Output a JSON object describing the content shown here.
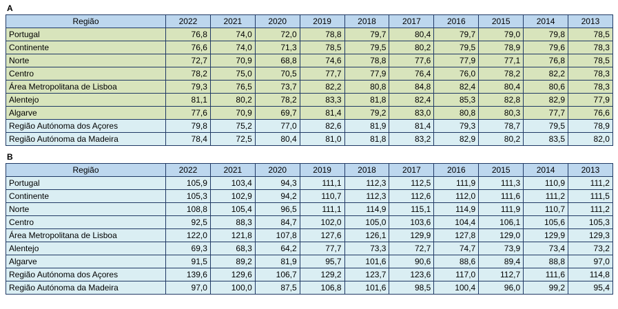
{
  "colors": {
    "header_fill": "#BDD7EE",
    "green_fill": "#D8E4BC",
    "blue_fill": "#DAEEF3",
    "border": "#1F3864",
    "text": "#000000"
  },
  "tables": [
    {
      "label": "A",
      "region_header": "Região",
      "years": [
        "2022",
        "2021",
        "2020",
        "2019",
        "2018",
        "2017",
        "2016",
        "2015",
        "2014",
        "2013"
      ],
      "rows": [
        {
          "region": "Portugal",
          "fill": "green",
          "values": [
            "76,8",
            "74,0",
            "72,0",
            "78,8",
            "79,7",
            "80,4",
            "79,7",
            "79,0",
            "79,8",
            "78,5"
          ]
        },
        {
          "region": "Continente",
          "fill": "green",
          "values": [
            "76,6",
            "74,0",
            "71,3",
            "78,5",
            "79,5",
            "80,2",
            "79,5",
            "78,9",
            "79,6",
            "78,3"
          ]
        },
        {
          "region": "Norte",
          "fill": "green",
          "values": [
            "72,7",
            "70,9",
            "68,8",
            "74,6",
            "78,8",
            "77,6",
            "77,9",
            "77,1",
            "76,8",
            "78,5"
          ]
        },
        {
          "region": "Centro",
          "fill": "green",
          "values": [
            "78,2",
            "75,0",
            "70,5",
            "77,7",
            "77,9",
            "76,4",
            "76,0",
            "78,2",
            "82,2",
            "78,3"
          ]
        },
        {
          "region": "Área Metropolitana de Lisboa",
          "fill": "green",
          "values": [
            "79,3",
            "76,5",
            "73,7",
            "82,2",
            "80,8",
            "84,8",
            "82,4",
            "80,4",
            "80,6",
            "78,3"
          ]
        },
        {
          "region": "Alentejo",
          "fill": "green",
          "values": [
            "81,1",
            "80,2",
            "78,2",
            "83,3",
            "81,8",
            "82,4",
            "85,3",
            "82,8",
            "82,9",
            "77,9"
          ]
        },
        {
          "region": "Algarve",
          "fill": "green",
          "values": [
            "77,6",
            "70,9",
            "69,7",
            "81,4",
            "79,2",
            "83,0",
            "80,8",
            "80,3",
            "77,7",
            "76,6"
          ]
        },
        {
          "region": "Região Autónoma dos Açores",
          "fill": "blue",
          "values": [
            "79,8",
            "75,2",
            "77,0",
            "82,6",
            "81,9",
            "81,4",
            "79,3",
            "78,7",
            "79,5",
            "78,9"
          ]
        },
        {
          "region": "Região Autónoma da Madeira",
          "fill": "blue",
          "values": [
            "78,4",
            "72,5",
            "80,4",
            "81,0",
            "81,8",
            "83,2",
            "82,9",
            "80,2",
            "83,5",
            "82,0"
          ]
        }
      ]
    },
    {
      "label": "B",
      "region_header": "Região",
      "years": [
        "2022",
        "2021",
        "2020",
        "2019",
        "2018",
        "2017",
        "2016",
        "2015",
        "2014",
        "2013"
      ],
      "rows": [
        {
          "region": "Portugal",
          "fill": "blue",
          "values": [
            "105,9",
            "103,4",
            "94,3",
            "111,1",
            "112,3",
            "112,5",
            "111,9",
            "111,3",
            "110,9",
            "111,2"
          ]
        },
        {
          "region": "Continente",
          "fill": "blue",
          "values": [
            "105,3",
            "102,9",
            "94,2",
            "110,7",
            "112,3",
            "112,6",
            "112,0",
            "111,6",
            "111,2",
            "111,5"
          ]
        },
        {
          "region": "Norte",
          "fill": "blue",
          "values": [
            "108,8",
            "105,4",
            "96,5",
            "111,1",
            "114,9",
            "115,1",
            "114,9",
            "111,9",
            "110,7",
            "111,2"
          ]
        },
        {
          "region": "Centro",
          "fill": "blue",
          "values": [
            "92,5",
            "88,3",
            "84,7",
            "102,0",
            "105,0",
            "103,6",
            "104,4",
            "106,1",
            "105,6",
            "105,3"
          ]
        },
        {
          "region": "Área Metropolitana de Lisboa",
          "fill": "blue",
          "values": [
            "122,0",
            "121,8",
            "107,8",
            "127,6",
            "126,1",
            "129,9",
            "127,8",
            "129,0",
            "129,9",
            "129,3"
          ]
        },
        {
          "region": "Alentejo",
          "fill": "blue",
          "values": [
            "69,3",
            "68,3",
            "64,2",
            "77,7",
            "73,3",
            "72,7",
            "74,7",
            "73,9",
            "73,4",
            "73,2"
          ]
        },
        {
          "region": "Algarve",
          "fill": "blue",
          "values": [
            "91,5",
            "89,2",
            "81,9",
            "95,7",
            "101,6",
            "90,6",
            "88,6",
            "89,4",
            "88,8",
            "97,0"
          ]
        },
        {
          "region": "Região Autónoma dos Açores",
          "fill": "blue",
          "values": [
            "139,6",
            "129,6",
            "106,7",
            "129,2",
            "123,7",
            "123,6",
            "117,0",
            "112,7",
            "111,6",
            "114,8"
          ]
        },
        {
          "region": "Região Autónoma da Madeira",
          "fill": "blue",
          "values": [
            "97,0",
            "100,0",
            "87,5",
            "106,8",
            "101,6",
            "98,5",
            "100,4",
            "96,0",
            "99,2",
            "95,4"
          ]
        }
      ]
    }
  ]
}
